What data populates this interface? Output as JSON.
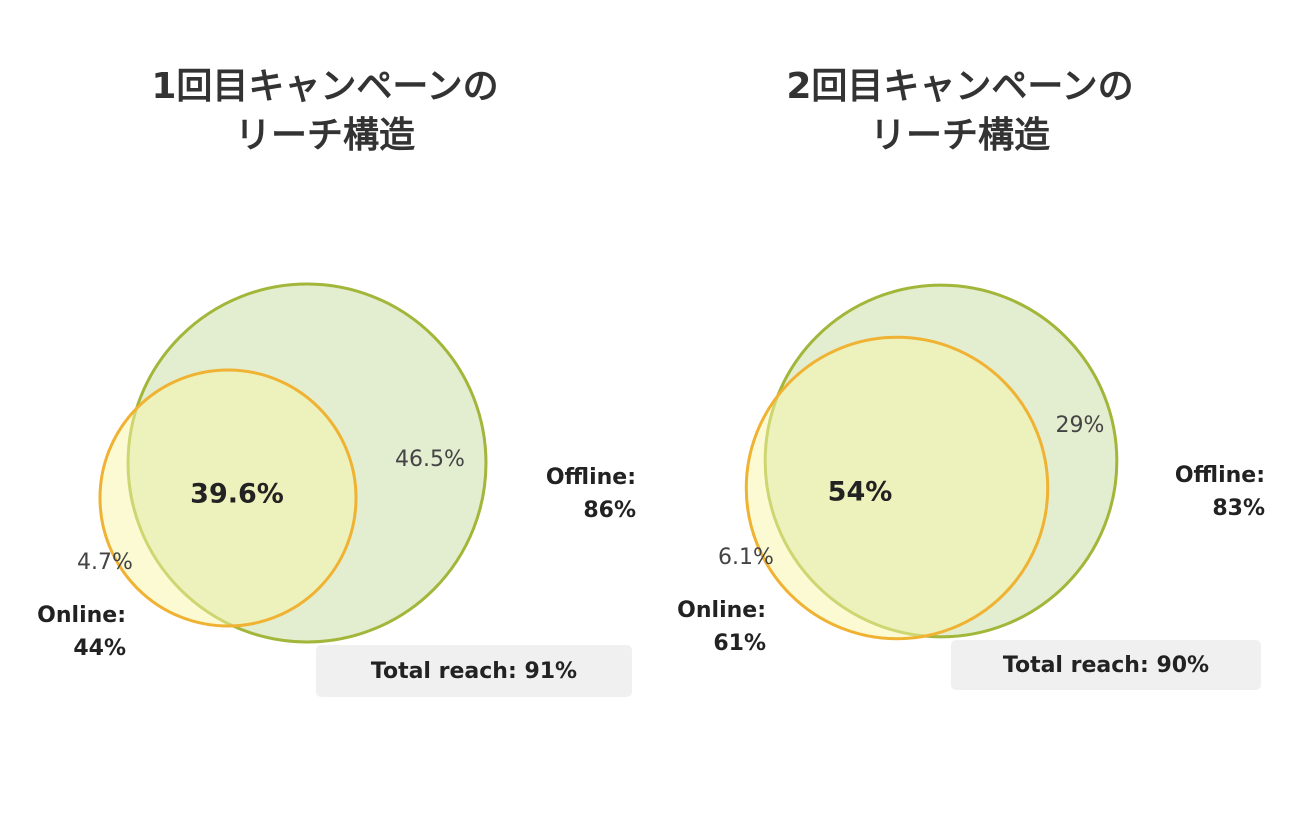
{
  "chart_data": [
    {
      "type": "venn",
      "title": [
        "1回目キャンペーンの",
        "リーチ構造"
      ],
      "sets": [
        {
          "name": "Offline:",
          "value": 86,
          "value_label": "86%",
          "only": 46.5,
          "only_label": "46.5%",
          "color": "#a2b63a",
          "fill": "#e3edcf"
        },
        {
          "name": "Online:",
          "value": 44,
          "value_label": "44%",
          "only": 4.7,
          "only_label": "4.7%",
          "color": "#f0b232",
          "fill": "#f8f6a8"
        }
      ],
      "intersection": 39.6,
      "intersection_label": "39.6%",
      "total_name": "Total reach:",
      "total": 91,
      "total_label": "91%"
    },
    {
      "type": "venn",
      "title": [
        "2回目キャンペーンの",
        "リーチ構造"
      ],
      "sets": [
        {
          "name": "Offline:",
          "value": 83,
          "value_label": "83%",
          "only": 29,
          "only_label": "29%",
          "color": "#a2b63a",
          "fill": "#e3edcf"
        },
        {
          "name": "Online:",
          "value": 61,
          "value_label": "61%",
          "only": 6.1,
          "only_label": "6.1%",
          "color": "#f0b232",
          "fill": "#f8f6a8"
        }
      ],
      "intersection": 54,
      "intersection_label": "54%",
      "total_name": "Total reach:",
      "total": 90,
      "total_label": "90%"
    }
  ]
}
